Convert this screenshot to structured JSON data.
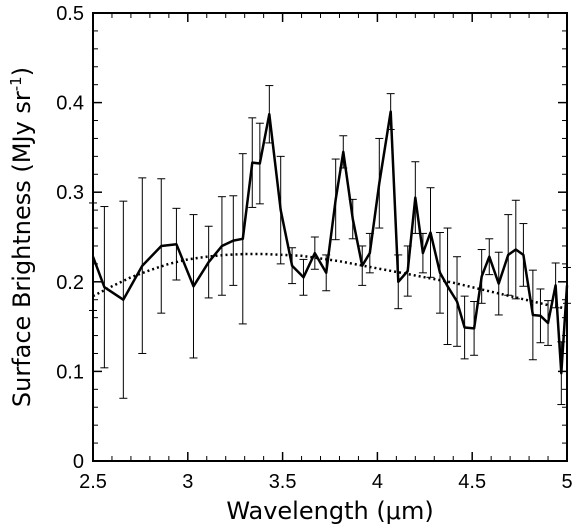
{
  "chart_data": {
    "type": "line",
    "xlabel": "Wavelength (μm)",
    "ylabel_main": "Surface Brightness (MJy sr",
    "ylabel_sup": "-1",
    "ylabel_close": ")",
    "xlim": [
      2.5,
      5.0
    ],
    "ylim": [
      0,
      0.5
    ],
    "xticks": [
      2.5,
      3.0,
      3.5,
      4.0,
      4.5,
      5.0
    ],
    "xtick_labels": [
      "2.5",
      "3",
      "3.5",
      "4",
      "4.5",
      "5"
    ],
    "yticks": [
      0,
      0.1,
      0.2,
      0.3,
      0.4,
      0.5
    ],
    "ytick_labels": [
      "0",
      "0.1",
      "0.2",
      "0.3",
      "0.4",
      "0.5"
    ],
    "grid": false,
    "legend": false,
    "series": [
      {
        "style": "solid",
        "color": "#000000",
        "x": [
          2.5,
          2.56,
          2.66,
          2.76,
          2.86,
          2.94,
          3.03,
          3.11,
          3.18,
          3.24,
          3.29,
          3.34,
          3.38,
          3.43,
          3.49,
          3.55,
          3.61,
          3.67,
          3.73,
          3.78,
          3.82,
          3.87,
          3.92,
          3.96,
          4.01,
          4.07,
          4.11,
          4.16,
          4.2,
          4.24,
          4.28,
          4.33,
          4.37,
          4.42,
          4.46,
          4.51,
          4.55,
          4.59,
          4.64,
          4.69,
          4.73,
          4.77,
          4.82,
          4.86,
          4.9,
          4.94,
          4.97,
          5.0
        ],
        "y": [
          0.228,
          0.194,
          0.18,
          0.218,
          0.24,
          0.242,
          0.195,
          0.222,
          0.24,
          0.246,
          0.248,
          0.333,
          0.332,
          0.387,
          0.28,
          0.218,
          0.205,
          0.232,
          0.21,
          0.292,
          0.345,
          0.27,
          0.218,
          0.232,
          0.31,
          0.39,
          0.2,
          0.212,
          0.294,
          0.232,
          0.255,
          0.21,
          0.195,
          0.178,
          0.149,
          0.148,
          0.206,
          0.228,
          0.198,
          0.23,
          0.236,
          0.23,
          0.163,
          0.162,
          0.154,
          0.196,
          0.098,
          0.196
        ],
        "err": [
          0.06,
          0.09,
          0.11,
          0.098,
          0.075,
          0.04,
          0.08,
          0.04,
          0.055,
          0.05,
          0.095,
          0.05,
          0.045,
          0.032,
          0.06,
          0.02,
          0.02,
          0.018,
          0.02,
          0.045,
          0.018,
          0.022,
          0.022,
          0.022,
          0.05,
          0.02,
          0.03,
          0.028,
          0.04,
          0.022,
          0.05,
          0.045,
          0.065,
          0.05,
          0.035,
          0.03,
          0.03,
          0.02,
          0.035,
          0.045,
          0.055,
          0.035,
          0.05,
          0.03,
          0.025,
          0.025,
          0.035,
          0.02
        ]
      },
      {
        "style": "dotted",
        "color": "#000000",
        "x": [
          2.5,
          2.6,
          2.7,
          2.8,
          2.9,
          3.0,
          3.1,
          3.2,
          3.3,
          3.4,
          3.5,
          3.6,
          3.7,
          3.8,
          3.9,
          4.0,
          4.1,
          4.2,
          4.3,
          4.4,
          4.5,
          4.6,
          4.7,
          4.8,
          4.9,
          5.0
        ],
        "y": [
          0.184,
          0.195,
          0.205,
          0.213,
          0.22,
          0.225,
          0.228,
          0.23,
          0.231,
          0.231,
          0.23,
          0.229,
          0.226,
          0.223,
          0.219,
          0.215,
          0.211,
          0.207,
          0.203,
          0.199,
          0.194,
          0.189,
          0.184,
          0.179,
          0.174,
          0.17
        ]
      }
    ]
  }
}
